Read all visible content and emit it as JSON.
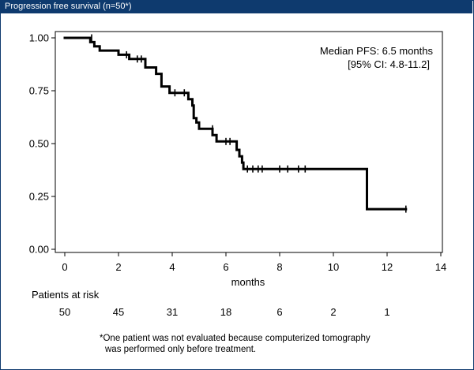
{
  "window": {
    "title": "Progression free survival (n=50*)"
  },
  "chart_data": {
    "type": "line",
    "subtype": "kaplan-meier-step",
    "title": "Progression free survival (n=50*)",
    "xlabel": "months",
    "ylabel": "",
    "xlim": [
      0,
      14
    ],
    "ylim": [
      0,
      1
    ],
    "x_ticks": [
      0,
      2,
      4,
      6,
      8,
      10,
      12,
      14
    ],
    "y_ticks": [
      0.0,
      0.25,
      0.5,
      0.75,
      1.0
    ],
    "y_tick_labels": [
      "0.00",
      "0.25",
      "0.50",
      "0.75",
      "1.00"
    ],
    "series": [
      {
        "name": "PFS",
        "step_points": [
          [
            0,
            1.0
          ],
          [
            0.95,
            1.0
          ],
          [
            0.95,
            0.98
          ],
          [
            1.1,
            0.98
          ],
          [
            1.1,
            0.96
          ],
          [
            1.3,
            0.96
          ],
          [
            1.3,
            0.94
          ],
          [
            2.0,
            0.94
          ],
          [
            2.0,
            0.92
          ],
          [
            2.4,
            0.92
          ],
          [
            2.4,
            0.9
          ],
          [
            3.0,
            0.9
          ],
          [
            3.0,
            0.86
          ],
          [
            3.4,
            0.86
          ],
          [
            3.4,
            0.83
          ],
          [
            3.6,
            0.83
          ],
          [
            3.6,
            0.77
          ],
          [
            3.9,
            0.77
          ],
          [
            3.9,
            0.74
          ],
          [
            4.6,
            0.74
          ],
          [
            4.6,
            0.71
          ],
          [
            4.75,
            0.71
          ],
          [
            4.75,
            0.68
          ],
          [
            4.8,
            0.68
          ],
          [
            4.8,
            0.62
          ],
          [
            4.9,
            0.62
          ],
          [
            4.9,
            0.6
          ],
          [
            5.0,
            0.6
          ],
          [
            5.0,
            0.57
          ],
          [
            5.5,
            0.57
          ],
          [
            5.5,
            0.54
          ],
          [
            5.65,
            0.54
          ],
          [
            5.65,
            0.51
          ],
          [
            6.4,
            0.51
          ],
          [
            6.4,
            0.47
          ],
          [
            6.5,
            0.47
          ],
          [
            6.5,
            0.44
          ],
          [
            6.6,
            0.44
          ],
          [
            6.6,
            0.41
          ],
          [
            6.65,
            0.41
          ],
          [
            6.65,
            0.38
          ],
          [
            11.25,
            0.38
          ],
          [
            11.25,
            0.19
          ],
          [
            12.7,
            0.19
          ]
        ],
        "censored": [
          [
            1.0,
            1.0
          ],
          [
            2.3,
            0.92
          ],
          [
            2.7,
            0.9
          ],
          [
            2.85,
            0.9
          ],
          [
            4.1,
            0.74
          ],
          [
            4.45,
            0.74
          ],
          [
            5.5,
            0.57
          ],
          [
            6.0,
            0.51
          ],
          [
            6.15,
            0.51
          ],
          [
            6.8,
            0.38
          ],
          [
            7.0,
            0.38
          ],
          [
            7.2,
            0.38
          ],
          [
            7.35,
            0.38
          ],
          [
            8.0,
            0.38
          ],
          [
            8.3,
            0.38
          ],
          [
            8.7,
            0.38
          ],
          [
            8.95,
            0.38
          ],
          [
            12.7,
            0.19
          ]
        ]
      }
    ],
    "annotations": [
      "Median PFS: 6.5 months",
      "[95% CI: 4.8-11.2]"
    ],
    "risk_table": {
      "label": "Patients at risk",
      "times": [
        0,
        2,
        4,
        6,
        8,
        10,
        12
      ],
      "counts": [
        "50",
        "45",
        "31",
        "18",
        "6",
        "2",
        "1"
      ]
    },
    "footnote": {
      "line1": "*One patient was not evaluated because computerized tomography",
      "line2": "was performed only before treatment."
    }
  }
}
